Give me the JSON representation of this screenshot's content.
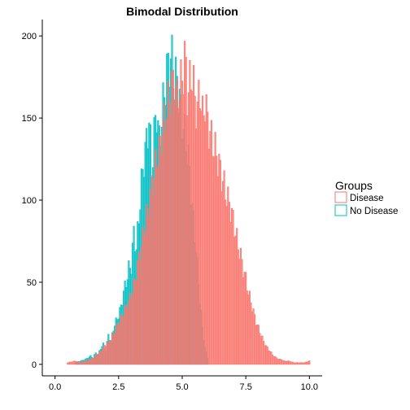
{
  "chart_data": {
    "type": "bar",
    "title": "Bimodal Distribution",
    "xlabel": "",
    "ylabel": "",
    "xlim": [
      -0.5,
      10.5
    ],
    "ylim": [
      -7,
      210
    ],
    "x_ticks": [
      0.0,
      2.5,
      5.0,
      7.5,
      10.0
    ],
    "x_tick_labels": [
      "0.0",
      "2.5",
      "5.0",
      "7.5",
      "10.0"
    ],
    "y_ticks": [
      0,
      50,
      100,
      150,
      200
    ],
    "y_tick_labels": [
      "0",
      "50",
      "100",
      "150",
      "200"
    ],
    "grid": false,
    "legend": {
      "title": "Groups",
      "placement": "right"
    },
    "bin_width": 0.05,
    "series": [
      {
        "name": "No Disease",
        "color": "#00BFC4",
        "x": [
          0.8,
          1.0,
          1.2,
          1.4,
          1.5,
          1.6,
          1.7,
          1.8,
          1.9,
          2.0,
          2.1,
          2.2,
          2.3,
          2.4,
          2.5,
          2.6,
          2.7,
          2.8,
          2.9,
          3.0,
          3.1,
          3.2,
          3.3,
          3.4,
          3.5,
          3.6,
          3.7,
          3.8,
          3.9,
          4.0,
          4.1,
          4.2,
          4.3,
          4.4,
          4.5,
          4.6,
          4.7,
          4.8,
          4.9,
          5.0,
          5.1,
          5.2,
          5.3,
          5.4,
          5.5,
          5.6,
          5.7,
          5.8,
          5.9,
          6.0
        ],
        "y": [
          1,
          2,
          3,
          5,
          4,
          7,
          6,
          10,
          12,
          8,
          18,
          14,
          22,
          26,
          30,
          35,
          44,
          50,
          58,
          60,
          80,
          70,
          90,
          110,
          125,
          135,
          150,
          118,
          140,
          155,
          135,
          150,
          165,
          178,
          185,
          185,
          170,
          175,
          160,
          150,
          140,
          130,
          118,
          95,
          80,
          60,
          40,
          22,
          10,
          4
        ]
      },
      {
        "name": "Disease",
        "color": "#F8766D",
        "x": [
          0.5,
          0.8,
          1.0,
          1.2,
          1.4,
          1.6,
          1.8,
          2.0,
          2.2,
          2.4,
          2.6,
          2.8,
          3.0,
          3.1,
          3.2,
          3.3,
          3.4,
          3.5,
          3.6,
          3.7,
          3.8,
          3.9,
          4.0,
          4.1,
          4.2,
          4.3,
          4.4,
          4.5,
          4.6,
          4.7,
          4.8,
          4.9,
          5.0,
          5.1,
          5.2,
          5.3,
          5.4,
          5.5,
          5.6,
          5.7,
          5.8,
          5.9,
          6.0,
          6.1,
          6.2,
          6.3,
          6.4,
          6.5,
          6.6,
          6.7,
          6.8,
          6.9,
          7.0,
          7.1,
          7.2,
          7.3,
          7.4,
          7.5,
          7.6,
          7.7,
          7.8,
          7.9,
          8.0,
          8.1,
          8.2,
          8.3,
          8.4,
          8.5,
          8.6,
          8.7,
          8.8,
          8.9,
          9.0,
          9.2,
          9.4,
          9.6,
          9.8,
          10.0
        ],
        "y": [
          1,
          2,
          1,
          2,
          3,
          5,
          8,
          12,
          15,
          22,
          28,
          35,
          42,
          48,
          55,
          65,
          72,
          82,
          90,
          98,
          108,
          115,
          125,
          130,
          140,
          148,
          155,
          162,
          168,
          175,
          160,
          170,
          172,
          188,
          165,
          170,
          178,
          160,
          155,
          168,
          150,
          160,
          148,
          140,
          135,
          130,
          125,
          118,
          112,
          105,
          100,
          95,
          88,
          80,
          72,
          66,
          58,
          52,
          44,
          38,
          32,
          26,
          22,
          18,
          14,
          11,
          9,
          7,
          5,
          4,
          3,
          3,
          2,
          2,
          1,
          1,
          1,
          2
        ]
      }
    ]
  }
}
